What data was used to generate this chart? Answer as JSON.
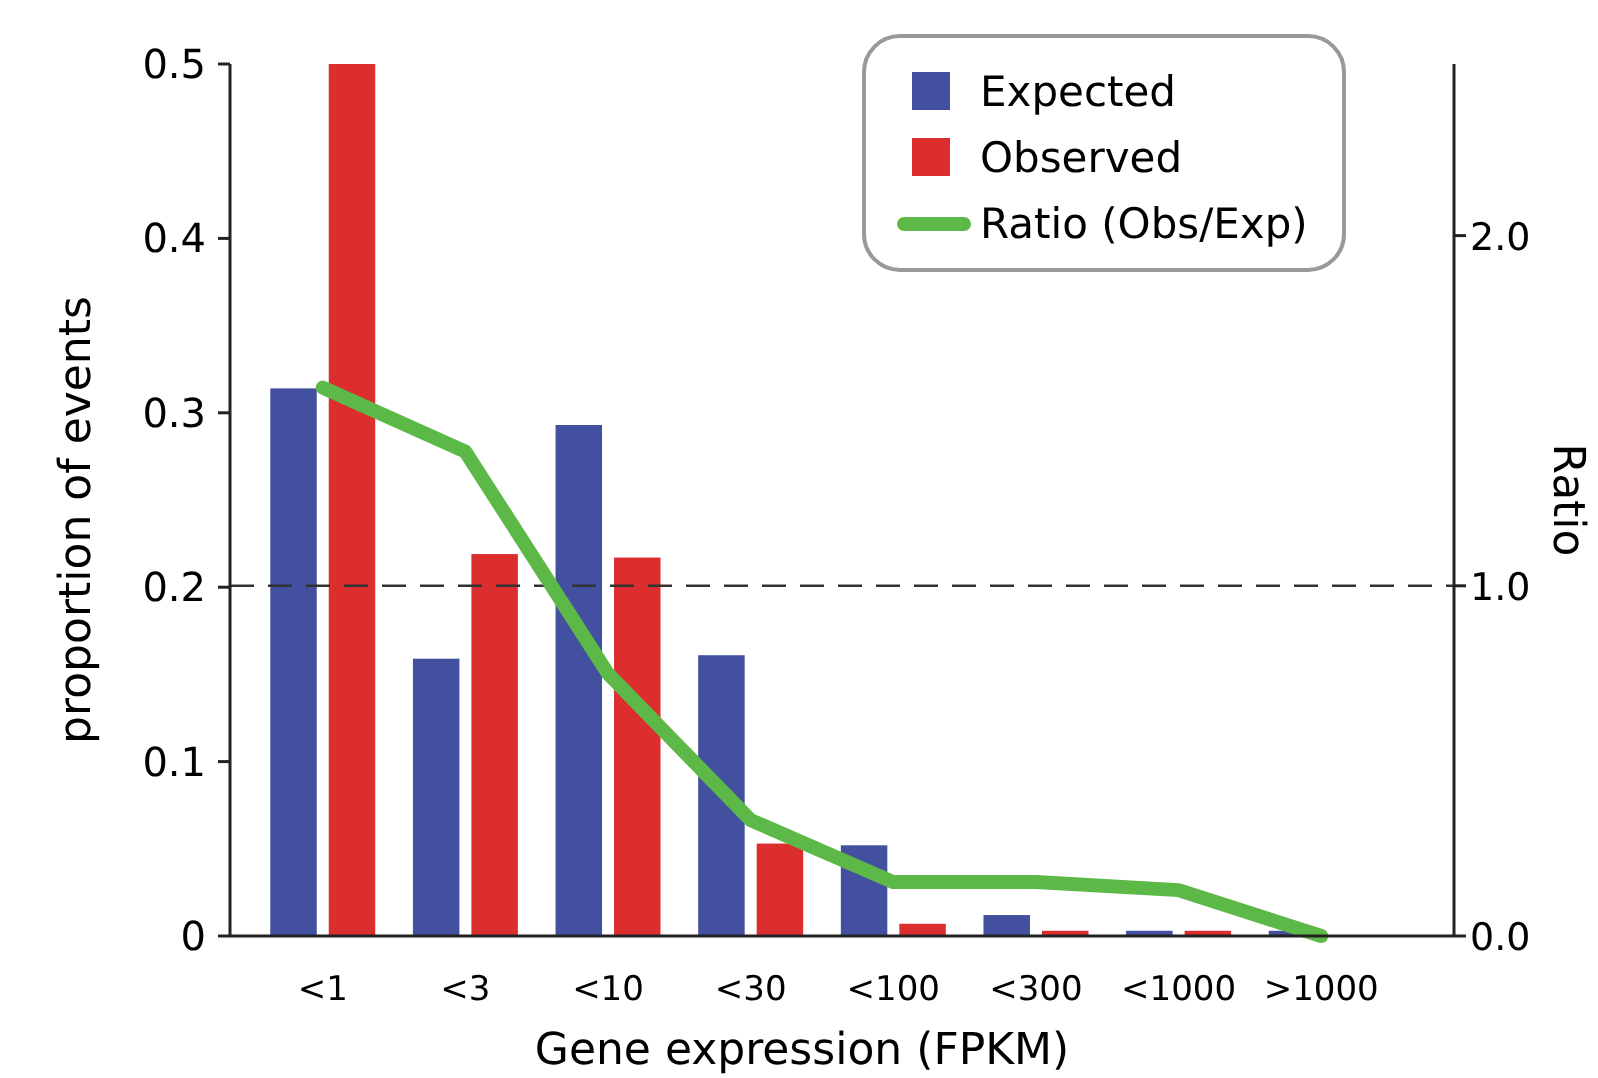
{
  "chart_data": {
    "type": "bar",
    "xlabel": "Gene expression (FPKM)",
    "ylabel": "proportion of events",
    "y2label": "Ratio",
    "categories": [
      "<1",
      "<3",
      "<10",
      "<30",
      "<100",
      "<300",
      "<1000",
      ">1000"
    ],
    "series": [
      {
        "name": "Expected",
        "color": "#4350a0",
        "values": [
          0.314,
          0.159,
          0.293,
          0.161,
          0.052,
          0.012,
          0.003,
          0.003
        ]
      },
      {
        "name": "Observed",
        "color": "#dd2e2f",
        "values": [
          0.5,
          0.219,
          0.217,
          0.053,
          0.007,
          0.003,
          0.003,
          0
        ]
      },
      {
        "name": "Ratio (Obs/Exp)",
        "type": "line",
        "axis": "y2",
        "color": "#5cb847",
        "values": [
          1.566,
          1.383,
          0.749,
          0.331,
          0.154,
          0.154,
          0.131,
          0.0
        ]
      }
    ],
    "ylim": [
      0,
      0.5
    ],
    "yticks": [
      {
        "value": 0,
        "label": "0"
      },
      0.1,
      0.2,
      0.3,
      0.4,
      0.5
    ],
    "y2lim": [
      0,
      2.49
    ],
    "y2ticks": [
      {
        "value": 0,
        "label": "0.0"
      },
      {
        "value": 1,
        "label": "1.0"
      },
      {
        "value": 2,
        "label": "2.0"
      }
    ],
    "ref_lines": [
      {
        "axis": "y2",
        "value": 1,
        "line_style": "dashed",
        "color": "#333333"
      }
    ],
    "legend": "top right",
    "grid": false
  }
}
